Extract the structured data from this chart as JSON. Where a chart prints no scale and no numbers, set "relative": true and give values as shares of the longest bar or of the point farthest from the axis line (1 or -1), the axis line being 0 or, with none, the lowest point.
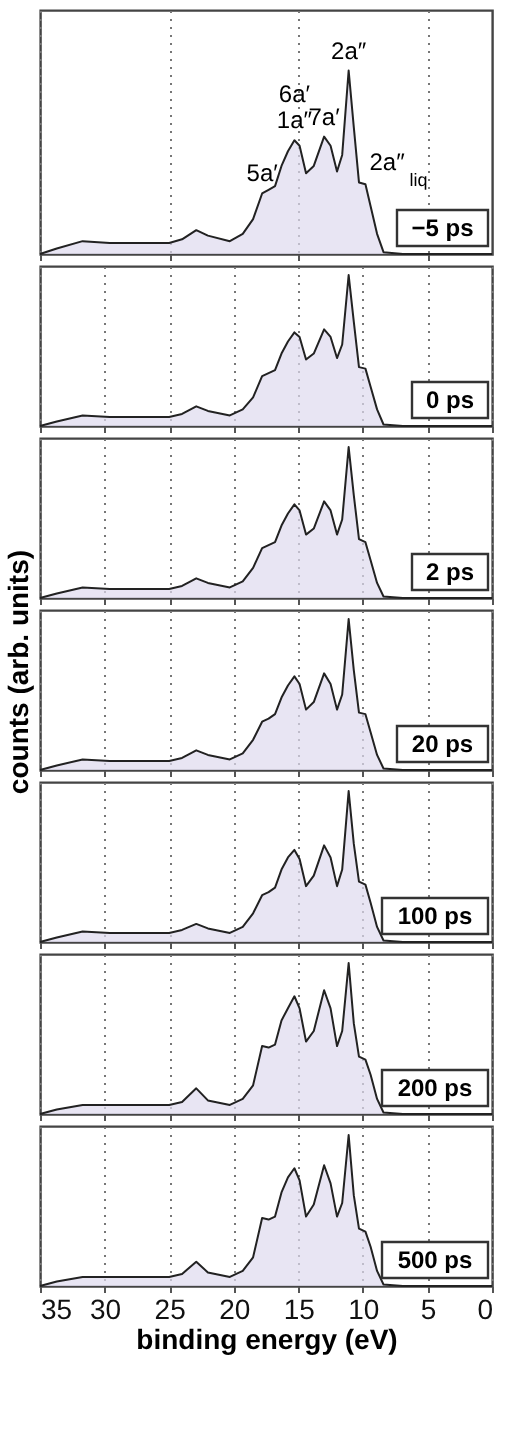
{
  "chart_data": [
    {
      "type": "area",
      "relative": true,
      "color": "#222222",
      "grid": "x",
      "tick_labels": false,
      "xlim": [
        35,
        0
      ],
      "xticks": [
        35,
        30,
        25,
        20,
        15,
        10,
        5,
        0
      ],
      "x": [
        35,
        33.7,
        31.7,
        29.6,
        25,
        24,
        22.9,
        22,
        20.3,
        19.3,
        18.5,
        17.8,
        17.3,
        16.8,
        16.3,
        15.8,
        15.3,
        14.9,
        14.4,
        13.8,
        13.0,
        12.5,
        12.0,
        11.6,
        11.1,
        10.7,
        10.3,
        9.8,
        9.4,
        8.9,
        8.4,
        6.9,
        0
      ],
      "values": [
        0,
        0.03,
        0.07,
        0.06,
        0.06,
        0.08,
        0.13,
        0.1,
        0.07,
        0.11,
        0.19,
        0.33,
        0.35,
        0.37,
        0.48,
        0.56,
        0.62,
        0.59,
        0.44,
        0.48,
        0.64,
        0.59,
        0.45,
        0.54,
        1.0,
        0.69,
        0.39,
        0.38,
        0.26,
        0.11,
        0.01,
        0,
        0
      ],
      "annotations": [
        "−5 ps",
        {
          "text": "5a′",
          "x": 17.8,
          "y": 0.33
        },
        {
          "text": "6a′\n1a″",
          "x": 15.3,
          "y": 0.62
        },
        {
          "text": "7a′",
          "x": 13.0,
          "y": 0.64
        },
        {
          "text": "2a″",
          "x": 11.1,
          "y": 1.0
        },
        {
          "text": "2a″$_{liq}$",
          "x": 9.8,
          "y": 0.38
        }
      ]
    },
    {
      "type": "area",
      "relative": true,
      "color": "#222222",
      "grid": "x",
      "tick_labels": false,
      "xlim": [
        35,
        0
      ],
      "xticks": [
        35,
        30,
        25,
        20,
        15,
        10,
        5,
        0
      ],
      "x": [
        35,
        33.7,
        31.7,
        29.6,
        25,
        24,
        22.9,
        22,
        20.3,
        19.3,
        18.5,
        17.8,
        17.3,
        16.8,
        16.3,
        15.8,
        15.3,
        14.9,
        14.4,
        13.8,
        13.0,
        12.5,
        12.0,
        11.6,
        11.1,
        10.7,
        10.3,
        9.8,
        9.4,
        8.9,
        8.4,
        6.9,
        0
      ],
      "values": [
        0,
        0.03,
        0.07,
        0.06,
        0.06,
        0.08,
        0.13,
        0.1,
        0.07,
        0.11,
        0.19,
        0.33,
        0.35,
        0.37,
        0.48,
        0.56,
        0.62,
        0.59,
        0.44,
        0.48,
        0.64,
        0.59,
        0.45,
        0.54,
        1.0,
        0.69,
        0.39,
        0.38,
        0.26,
        0.11,
        0.01,
        0,
        0
      ],
      "annotations": [
        "0 ps"
      ]
    },
    {
      "type": "area",
      "relative": true,
      "color": "#222222",
      "grid": "x",
      "tick_labels": false,
      "xlim": [
        35,
        0
      ],
      "xticks": [
        35,
        30,
        25,
        20,
        15,
        10,
        5,
        0
      ],
      "x": [
        35,
        33.7,
        31.7,
        29.6,
        25,
        24,
        22.9,
        22,
        20.3,
        19.3,
        18.5,
        17.8,
        17.3,
        16.8,
        16.3,
        15.8,
        15.3,
        14.9,
        14.4,
        13.8,
        13.0,
        12.5,
        12.0,
        11.6,
        11.1,
        10.7,
        10.3,
        9.8,
        9.4,
        8.9,
        8.4,
        6.9,
        0
      ],
      "values": [
        0,
        0.03,
        0.07,
        0.06,
        0.06,
        0.08,
        0.13,
        0.1,
        0.07,
        0.11,
        0.2,
        0.33,
        0.35,
        0.37,
        0.48,
        0.56,
        0.62,
        0.58,
        0.42,
        0.46,
        0.64,
        0.58,
        0.42,
        0.52,
        1.0,
        0.68,
        0.39,
        0.37,
        0.25,
        0.1,
        0.01,
        0,
        0
      ],
      "annotations": [
        "2 ps"
      ]
    },
    {
      "type": "area",
      "relative": true,
      "color": "#222222",
      "grid": "x",
      "tick_labels": false,
      "xlim": [
        35,
        0
      ],
      "xticks": [
        35,
        30,
        25,
        20,
        15,
        10,
        5,
        0
      ],
      "x": [
        35,
        33.7,
        31.7,
        29.6,
        25,
        24,
        22.9,
        22,
        20.3,
        19.3,
        18.5,
        17.8,
        17.3,
        16.8,
        16.3,
        15.8,
        15.3,
        14.9,
        14.4,
        13.8,
        13.0,
        12.5,
        12.0,
        11.6,
        11.1,
        10.7,
        10.3,
        9.8,
        9.4,
        8.9,
        8.4,
        6.9,
        0
      ],
      "values": [
        0,
        0.03,
        0.07,
        0.06,
        0.06,
        0.08,
        0.13,
        0.1,
        0.07,
        0.11,
        0.2,
        0.32,
        0.34,
        0.37,
        0.48,
        0.56,
        0.62,
        0.57,
        0.4,
        0.45,
        0.64,
        0.57,
        0.4,
        0.5,
        1.0,
        0.66,
        0.38,
        0.37,
        0.25,
        0.1,
        0.01,
        0,
        0
      ],
      "ylabel": "counts (arb. units)",
      "annotations": [
        "20 ps"
      ]
    },
    {
      "type": "area",
      "relative": true,
      "color": "#222222",
      "grid": "x",
      "tick_labels": false,
      "xlim": [
        35,
        0
      ],
      "xticks": [
        35,
        30,
        25,
        20,
        15,
        10,
        5,
        0
      ],
      "x": [
        35,
        33.7,
        31.7,
        29.6,
        25,
        24,
        22.9,
        22,
        20.3,
        19.3,
        18.5,
        17.8,
        17.3,
        16.8,
        16.3,
        15.8,
        15.3,
        14.9,
        14.4,
        13.8,
        13.0,
        12.5,
        12.0,
        11.6,
        11.1,
        10.7,
        10.3,
        9.8,
        9.4,
        8.9,
        8.4,
        6.9,
        0
      ],
      "values": [
        0,
        0.03,
        0.07,
        0.06,
        0.06,
        0.08,
        0.12,
        0.09,
        0.06,
        0.1,
        0.19,
        0.31,
        0.33,
        0.36,
        0.48,
        0.56,
        0.61,
        0.55,
        0.37,
        0.44,
        0.64,
        0.56,
        0.37,
        0.48,
        1.0,
        0.65,
        0.4,
        0.38,
        0.26,
        0.1,
        0.01,
        0,
        0
      ],
      "annotations": [
        "100 ps"
      ]
    },
    {
      "type": "area",
      "relative": true,
      "color": "#222222",
      "grid": "x",
      "tick_labels": false,
      "xlim": [
        35,
        0
      ],
      "xticks": [
        35,
        30,
        25,
        20,
        15,
        10,
        5,
        0
      ],
      "x": [
        35,
        33.7,
        31.7,
        29.6,
        25,
        24,
        22.9,
        22,
        20.3,
        19.3,
        18.5,
        17.8,
        17.3,
        16.8,
        16.3,
        15.8,
        15.3,
        14.9,
        14.4,
        13.8,
        13.0,
        12.5,
        12.0,
        11.6,
        11.1,
        10.7,
        10.3,
        9.8,
        9.4,
        8.9,
        8.4,
        6.9,
        0
      ],
      "values": [
        0,
        0.03,
        0.06,
        0.06,
        0.06,
        0.08,
        0.17,
        0.09,
        0.06,
        0.1,
        0.19,
        0.45,
        0.44,
        0.46,
        0.62,
        0.7,
        0.78,
        0.7,
        0.48,
        0.55,
        0.82,
        0.7,
        0.45,
        0.55,
        1.0,
        0.6,
        0.38,
        0.36,
        0.26,
        0.1,
        0.01,
        0,
        0
      ],
      "annotations": [
        "200 ps"
      ]
    },
    {
      "type": "area",
      "relative": true,
      "color": "#222222",
      "grid": "x",
      "tick_labels": "x",
      "xlim": [
        35,
        0
      ],
      "xticks": [
        35,
        30,
        25,
        20,
        15,
        10,
        5,
        0
      ],
      "x": [
        35,
        33.7,
        31.7,
        29.6,
        25,
        24,
        22.9,
        22,
        20.3,
        19.3,
        18.5,
        17.8,
        17.3,
        16.8,
        16.3,
        15.8,
        15.3,
        14.9,
        14.4,
        13.8,
        13.0,
        12.5,
        12.0,
        11.6,
        11.1,
        10.7,
        10.3,
        9.8,
        9.4,
        8.9,
        8.4,
        6.9,
        0
      ],
      "values": [
        0,
        0.03,
        0.06,
        0.06,
        0.06,
        0.08,
        0.16,
        0.09,
        0.06,
        0.1,
        0.19,
        0.45,
        0.44,
        0.46,
        0.62,
        0.72,
        0.78,
        0.7,
        0.46,
        0.54,
        0.8,
        0.68,
        0.46,
        0.55,
        1.0,
        0.6,
        0.38,
        0.36,
        0.26,
        0.1,
        0.01,
        0,
        0
      ],
      "xlabel": "binding energy (eV)",
      "annotations": [
        "500 ps"
      ]
    }
  ]
}
